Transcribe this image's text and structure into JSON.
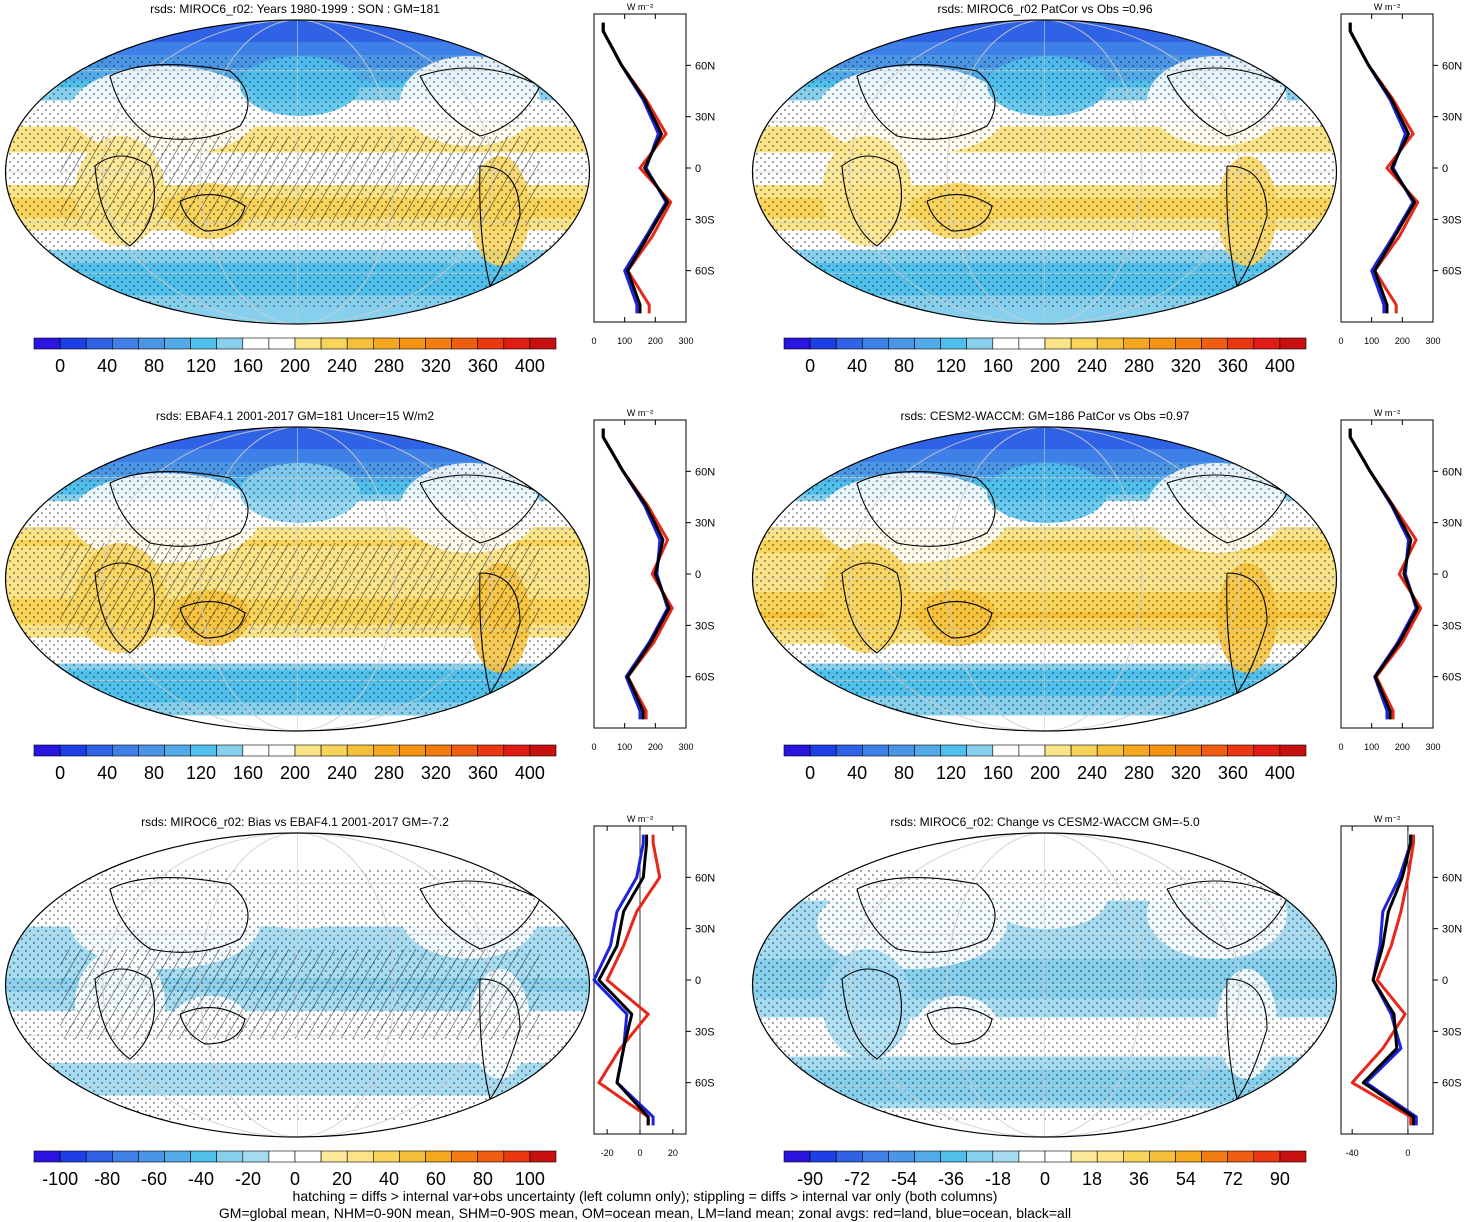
{
  "panels": [
    {
      "title": "rsds: MIROC6_r02: Years 1980-1999 : SON : GM=181",
      "kind": "abs",
      "hatch": true,
      "colorbar_labels": [
        "0",
        "40",
        "80",
        "120",
        "160",
        "200",
        "240",
        "280",
        "320",
        "360",
        "400"
      ],
      "profile_xticks": [
        "0",
        "100",
        "200",
        "300"
      ],
      "profile_xlim": [
        0,
        300
      ]
    },
    {
      "title": "rsds: MIROC6_r02 PatCor vs Obs =0.96",
      "kind": "abs",
      "hatch": false,
      "colorbar_labels": [
        "0",
        "40",
        "80",
        "120",
        "160",
        "200",
        "240",
        "280",
        "320",
        "360",
        "400"
      ],
      "profile_xticks": [
        "0",
        "100",
        "200",
        "300"
      ],
      "profile_xlim": [
        0,
        300
      ]
    },
    {
      "title": "rsds: EBAF4.1 2001-2017 GM=181 Uncer=15 W/m2",
      "kind": "abs",
      "hatch": true,
      "colorbar_labels": [
        "0",
        "40",
        "80",
        "120",
        "160",
        "200",
        "240",
        "280",
        "320",
        "360",
        "400"
      ],
      "profile_xticks": [
        "0",
        "100",
        "200",
        "300"
      ],
      "profile_xlim": [
        0,
        300
      ]
    },
    {
      "title": "rsds: CESM2-WACCM: GM=186 PatCor vs Obs =0.97",
      "kind": "abs",
      "hatch": false,
      "colorbar_labels": [
        "0",
        "40",
        "80",
        "120",
        "160",
        "200",
        "240",
        "280",
        "320",
        "360",
        "400"
      ],
      "profile_xticks": [
        "0",
        "100",
        "200",
        "300"
      ],
      "profile_xlim": [
        0,
        300
      ]
    },
    {
      "title": "rsds: MIROC6_r02: Bias vs EBAF4.1 2001-2017  GM=-7.2",
      "kind": "diff",
      "hatch": true,
      "colorbar_labels": [
        "-100",
        "-80",
        "-60",
        "-40",
        "-20",
        "0",
        "20",
        "40",
        "60",
        "80",
        "100"
      ],
      "profile_xticks": [
        "-20",
        "0",
        "20"
      ],
      "profile_xlim": [
        -28,
        28
      ]
    },
    {
      "title": "rsds: MIROC6_r02: Change vs CESM2-WACCM GM=-5.0",
      "kind": "diff",
      "hatch": false,
      "colorbar_labels": [
        "-90",
        "-72",
        "-54",
        "-36",
        "-18",
        "0",
        "18",
        "36",
        "54",
        "72",
        "90"
      ],
      "profile_xticks": [
        "-40",
        "0"
      ],
      "profile_xlim": [
        -48,
        18
      ]
    }
  ],
  "profile_unit": "W m⁻²",
  "lat_labels": [
    "60N",
    "30N",
    "0",
    "30S",
    "60S"
  ],
  "footer": {
    "line1": "hatching = diffs > internal var+obs uncertainty (left column only); stippling = diffs > internal var only (both columns)",
    "line2": "GM=global mean, NHM=0-90N mean, SHM=0-90S mean, OM=ocean mean, LM=land mean; zonal avgs: red=land, blue=ocean, black=all"
  },
  "colors": {
    "abs_palette": [
      "#2a14e0",
      "#1e3ee6",
      "#2f62e4",
      "#3f7fe8",
      "#4b95e6",
      "#52abe8",
      "#4fc0ec",
      "#86d0ee",
      "#ffffff",
      "#ffffff",
      "#fbe487",
      "#f8d45a",
      "#f6c13a",
      "#f5a81d",
      "#f49412",
      "#f37c10",
      "#ef5d10",
      "#ea3812",
      "#e01c14",
      "#c81010"
    ],
    "diff_palette": [
      "#2a14e0",
      "#1e3ee6",
      "#2f62e4",
      "#3f7fe8",
      "#4b95e6",
      "#52abe8",
      "#4fc0ec",
      "#86d0ee",
      "#a6dcf2",
      "#ffffff",
      "#ffffff",
      "#fce99a",
      "#fbe487",
      "#f8d45a",
      "#f6c13a",
      "#f5a81d",
      "#f37c10",
      "#ef5d10",
      "#ea3812",
      "#c81010"
    ],
    "land": "#e8271b",
    "ocean": "#1d21e0",
    "all": "#000000"
  },
  "chart_data": [
    {
      "type": "heatmap",
      "panel": "MIROC6_r02 SON",
      "lat": [
        80,
        60,
        40,
        20,
        0,
        -20,
        -40,
        -60,
        -80
      ],
      "zonal_land": [
        30,
        90,
        170,
        235,
        150,
        250,
        190,
        110,
        180
      ],
      "zonal_ocean": [
        30,
        90,
        160,
        210,
        170,
        235,
        170,
        100,
        140
      ],
      "zonal_all": [
        30,
        90,
        165,
        220,
        165,
        240,
        175,
        110,
        150
      ]
    },
    {
      "type": "heatmap",
      "panel": "MIROC6_r02 PatCor",
      "lat": [
        80,
        60,
        40,
        20,
        0,
        -20,
        -40,
        -60,
        -80
      ],
      "zonal_land": [
        30,
        90,
        170,
        235,
        150,
        250,
        190,
        110,
        180
      ],
      "zonal_ocean": [
        30,
        90,
        160,
        210,
        170,
        235,
        170,
        100,
        140
      ],
      "zonal_all": [
        30,
        90,
        165,
        220,
        165,
        240,
        175,
        110,
        150
      ]
    },
    {
      "type": "heatmap",
      "panel": "EBAF4.1",
      "lat": [
        80,
        60,
        40,
        20,
        0,
        -20,
        -40,
        -60,
        -80
      ],
      "zonal_land": [
        30,
        95,
        175,
        240,
        190,
        255,
        195,
        110,
        170
      ],
      "zonal_ocean": [
        30,
        95,
        165,
        215,
        205,
        240,
        180,
        105,
        150
      ],
      "zonal_all": [
        30,
        95,
        170,
        225,
        200,
        245,
        185,
        110,
        160
      ]
    },
    {
      "type": "heatmap",
      "panel": "CESM2-WACCM",
      "lat": [
        80,
        60,
        40,
        20,
        0,
        -20,
        -40,
        -60,
        -80
      ],
      "zonal_land": [
        30,
        95,
        170,
        245,
        190,
        260,
        200,
        115,
        170
      ],
      "zonal_ocean": [
        30,
        95,
        165,
        220,
        210,
        245,
        185,
        110,
        150
      ],
      "zonal_all": [
        30,
        95,
        168,
        228,
        205,
        250,
        190,
        112,
        160
      ]
    },
    {
      "type": "heatmap",
      "panel": "Bias vs EBAF4.1",
      "lat": [
        80,
        60,
        40,
        20,
        0,
        -20,
        -40,
        -60,
        -80
      ],
      "zonal_land": [
        8,
        12,
        -2,
        -10,
        -20,
        5,
        -12,
        -25,
        5
      ],
      "zonal_ocean": [
        2,
        -2,
        -14,
        -18,
        -28,
        -8,
        -10,
        -14,
        8
      ],
      "zonal_all": [
        4,
        2,
        -10,
        -14,
        -25,
        -5,
        -10,
        -14,
        5
      ]
    },
    {
      "type": "heatmap",
      "panel": "Change vs CESM2-WACCM",
      "lat": [
        80,
        60,
        40,
        20,
        0,
        -20,
        -40,
        -60,
        -80
      ],
      "zonal_land": [
        4,
        0,
        -5,
        -12,
        -22,
        -2,
        -18,
        -40,
        2
      ],
      "zonal_ocean": [
        2,
        -6,
        -18,
        -20,
        -25,
        -12,
        -5,
        -30,
        6
      ],
      "zonal_all": [
        2,
        -4,
        -14,
        -18,
        -25,
        -10,
        -8,
        -32,
        4
      ]
    }
  ]
}
